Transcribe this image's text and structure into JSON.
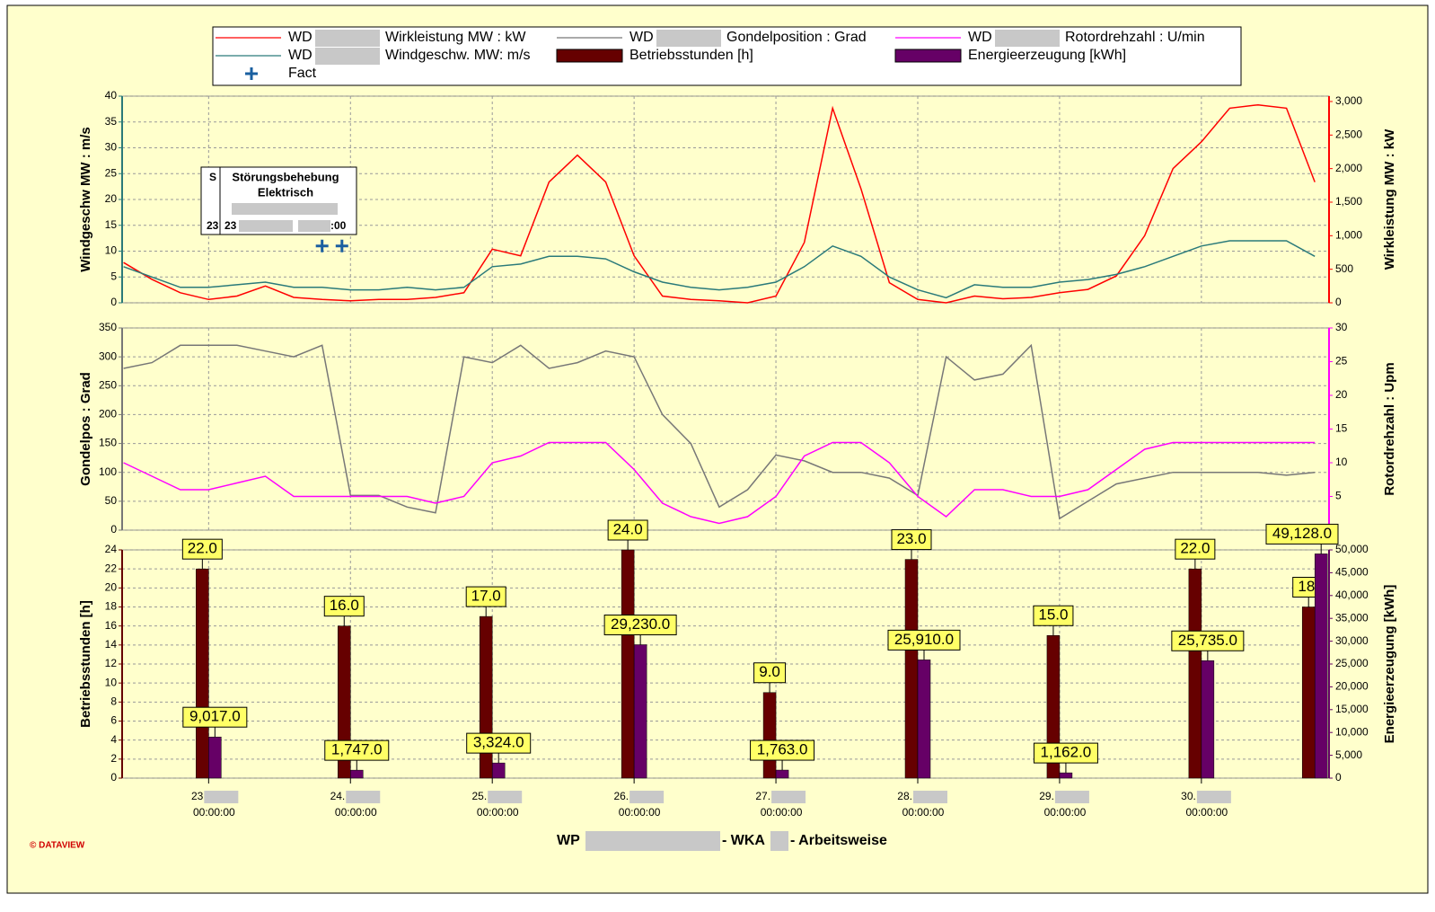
{
  "legend": {
    "prefix": "WD",
    "marker_label": "Fact"
  },
  "annotation": {
    "left_header": "S",
    "left_value": "23",
    "title": "Störungsbehebung",
    "subtitle": "Elektrisch",
    "value": "23",
    "value_end": ":00"
  },
  "footer": {
    "title_start": "WP",
    "title_mid": "- WKA",
    "title_end": "- Arbeitsweise",
    "copyright": "© DATAVIEW"
  },
  "x_axis": {
    "xlim": [
      22.39,
      30.9
    ],
    "time_label": "00:00:00",
    "xticks": [
      {
        "value": 23,
        "label": "23"
      },
      {
        "value": 24,
        "label": "24."
      },
      {
        "value": 25,
        "label": "25."
      },
      {
        "value": 26,
        "label": "26."
      },
      {
        "value": 27,
        "label": "27."
      },
      {
        "value": 28,
        "label": "28."
      },
      {
        "value": 29,
        "label": "29."
      },
      {
        "value": 30,
        "label": "30."
      }
    ]
  },
  "chart_data": [
    {
      "type": "line",
      "ylabel": "Windgeschw MW : m/s",
      "y2label": "Wirkleistung MW : kW",
      "ylim": [
        0,
        40
      ],
      "yticks": [
        0,
        5,
        10,
        15,
        20,
        25,
        30,
        35,
        40
      ],
      "y2lim": [
        0,
        3080
      ],
      "y2ticks": [
        0,
        500,
        {
          "value": 1000,
          "label": "1,000"
        },
        {
          "value": 1500,
          "label": "1,500"
        },
        {
          "value": 2000,
          "label": "2,000"
        },
        {
          "value": 2500,
          "label": "2,500"
        },
        {
          "value": 3000,
          "label": "3,000"
        }
      ],
      "grid": true,
      "x": [
        22.4,
        22.6,
        22.8,
        23.0,
        23.2,
        23.4,
        23.6,
        23.8,
        24.0,
        24.2,
        24.4,
        24.6,
        24.8,
        25.0,
        25.2,
        25.4,
        25.6,
        25.8,
        26.0,
        26.2,
        26.4,
        26.6,
        26.8,
        27.0,
        27.2,
        27.4,
        27.6,
        27.8,
        28.0,
        28.2,
        28.4,
        28.6,
        28.8,
        29.0,
        29.2,
        29.4,
        29.6,
        29.8,
        30.0,
        30.2,
        30.4,
        30.6,
        30.8
      ],
      "series": [
        {
          "name": "Wirkleistung MW : kW",
          "color": "#ff0000",
          "axis": "y2",
          "values": [
            600,
            350,
            150,
            50,
            100,
            250,
            80,
            50,
            30,
            50,
            50,
            80,
            150,
            800,
            700,
            1800,
            2200,
            1800,
            700,
            100,
            50,
            30,
            0,
            100,
            900,
            2900,
            1700,
            300,
            50,
            0,
            100,
            60,
            80,
            150,
            200,
            400,
            1000,
            2000,
            2400,
            2900,
            2950,
            2900,
            1800
          ]
        },
        {
          "name": "Windgeschw. MW: m/s",
          "color": "#2a7a7a",
          "values": [
            7,
            5,
            3,
            3,
            3.5,
            4,
            3,
            3,
            2.5,
            2.5,
            3,
            2.5,
            3,
            7,
            7.5,
            9,
            9,
            8.5,
            6,
            4,
            3,
            2.5,
            3,
            4,
            7,
            11,
            9,
            5,
            2.5,
            1,
            3.5,
            3,
            3,
            4,
            4.5,
            5.5,
            7,
            9,
            11,
            12,
            12,
            12,
            9
          ]
        },
        {
          "name": "Fact",
          "color": "#1a5fa0",
          "type": "scatter",
          "x": [
            23.8,
            23.94
          ],
          "values": [
            11,
            11
          ]
        }
      ]
    },
    {
      "type": "line",
      "ylabel": "Gondelpos : Grad",
      "y2label": "Rotordrehzahl : Upm",
      "ylim": [
        0,
        350
      ],
      "yticks": [
        0,
        50,
        100,
        150,
        200,
        250,
        300,
        350
      ],
      "y2lim": [
        0,
        30
      ],
      "y2ticks": [
        5,
        10,
        15,
        20,
        25,
        30
      ],
      "grid": true,
      "x": [
        22.4,
        22.6,
        22.8,
        23.0,
        23.2,
        23.4,
        23.6,
        23.8,
        24.0,
        24.2,
        24.4,
        24.6,
        24.8,
        25.0,
        25.2,
        25.4,
        25.6,
        25.8,
        26.0,
        26.2,
        26.4,
        26.6,
        26.8,
        27.0,
        27.2,
        27.4,
        27.6,
        27.8,
        28.0,
        28.2,
        28.4,
        28.6,
        28.8,
        29.0,
        29.2,
        29.4,
        29.6,
        29.8,
        30.0,
        30.2,
        30.4,
        30.6,
        30.8
      ],
      "series": [
        {
          "name": "Gondelposition : Grad",
          "color": "#777777",
          "values": [
            280,
            290,
            320,
            320,
            320,
            310,
            300,
            320,
            60,
            60,
            40,
            30,
            300,
            290,
            320,
            280,
            290,
            310,
            300,
            200,
            150,
            40,
            70,
            130,
            120,
            100,
            100,
            90,
            60,
            300,
            260,
            270,
            320,
            20,
            50,
            80,
            90,
            100,
            100,
            100,
            100,
            95,
            100
          ]
        },
        {
          "name": "Rotordrehzahl : U/min",
          "color": "#ff00ff",
          "axis": "y2",
          "values": [
            10,
            8,
            6,
            6,
            7,
            8,
            5,
            5,
            5,
            5,
            5,
            4,
            5,
            10,
            11,
            13,
            13,
            13,
            9,
            4,
            2,
            1,
            2,
            5,
            11,
            13,
            13,
            10,
            5,
            2,
            6,
            6,
            5,
            5,
            6,
            9,
            12,
            13,
            13,
            13,
            13,
            13,
            13
          ]
        }
      ]
    },
    {
      "type": "bar",
      "ylabel": "Betriebsstunden [h]",
      "y2label": "Energieerzeugung [kWh]",
      "ylim": [
        0,
        24
      ],
      "yticks": [
        0,
        2,
        4,
        6,
        8,
        10,
        12,
        14,
        16,
        18,
        20,
        22,
        24
      ],
      "y2lim": [
        0,
        50000
      ],
      "y2ticks": [
        0,
        {
          "value": 5000,
          "label": "5,000"
        },
        {
          "value": 10000,
          "label": "10,000"
        },
        {
          "value": 15000,
          "label": "15,000"
        },
        {
          "value": 20000,
          "label": "20,000"
        },
        {
          "value": 25000,
          "label": "25,000"
        },
        {
          "value": 30000,
          "label": "30,000"
        },
        {
          "value": 35000,
          "label": "35,000"
        },
        {
          "value": 40000,
          "label": "40,000"
        },
        {
          "value": 45000,
          "label": "45,000"
        },
        {
          "value": 50000,
          "label": "50,000"
        }
      ],
      "grid": true,
      "x": [
        23,
        24,
        25,
        26,
        27,
        28,
        29,
        30,
        30.8
      ],
      "series": [
        {
          "name": "Betriebsstunden [h]",
          "color": "#660000",
          "values": [
            22,
            16,
            17,
            24,
            9,
            23,
            15,
            22,
            18
          ],
          "value_labels": [
            "22.0",
            "16.0",
            "17.0",
            "24.0",
            "9.0",
            "23.0",
            "15.0",
            "22.0",
            "18."
          ]
        },
        {
          "name": "Energieerzeugung [kWh]",
          "color": "#660066",
          "axis": "y2",
          "values": [
            9017,
            1747,
            3324,
            29230,
            1763,
            25910,
            1162,
            25735,
            49128
          ],
          "value_labels": [
            "9,017.0",
            "1,747.0",
            "3,324.0",
            "29,230.0",
            "1,763.0",
            "25,910.0",
            "1,162.0",
            "25,735.0",
            "49,128.0"
          ]
        }
      ]
    }
  ]
}
